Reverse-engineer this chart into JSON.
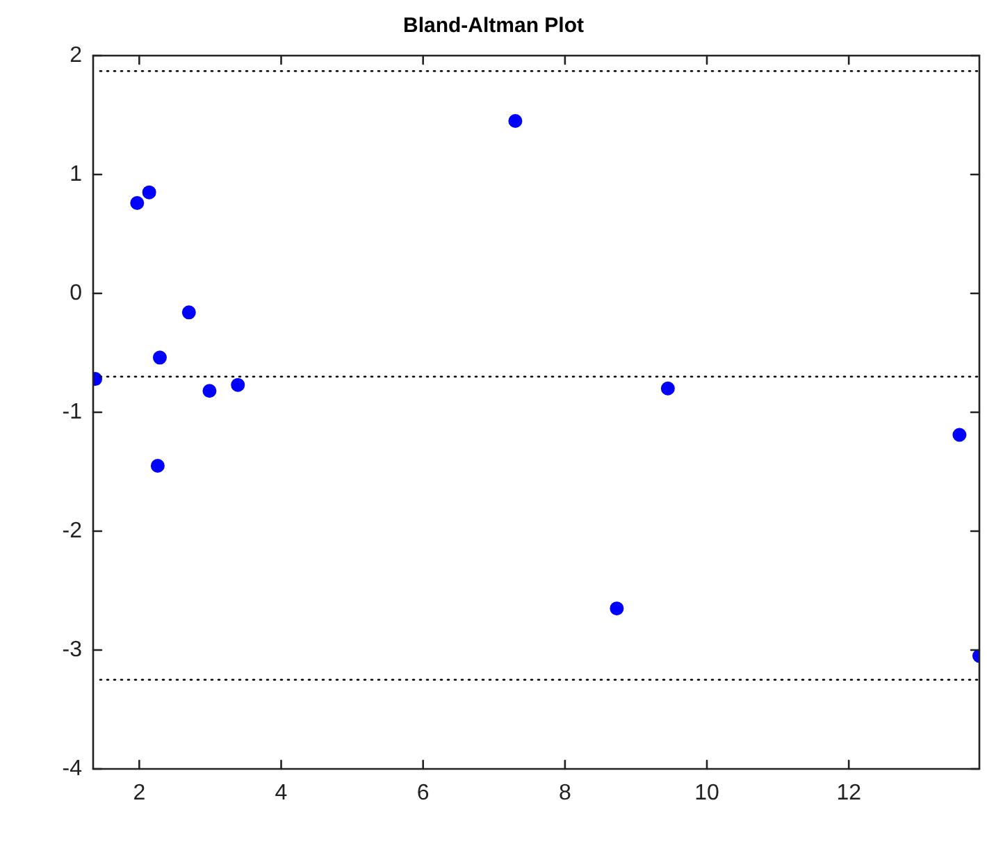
{
  "chart_data": {
    "type": "scatter",
    "title": "Bland-Altman Plot",
    "x": [
      1.38,
      1.97,
      2.14,
      2.29,
      2.26,
      2.7,
      2.99,
      3.39,
      7.3,
      9.45,
      8.73,
      13.56,
      13.84
    ],
    "series": [
      {
        "color": "#0000ff",
        "values": [
          -0.72,
          0.76,
          0.85,
          -0.54,
          -1.45,
          -0.16,
          -0.82,
          -0.77,
          1.45,
          -0.8,
          -2.65,
          -1.19,
          -3.05
        ]
      }
    ],
    "xlim": [
      1.35,
      13.84
    ],
    "xticks": [
      2,
      4,
      6,
      8,
      10,
      12
    ],
    "ylim": [
      -4,
      2
    ],
    "yticks": [
      -4,
      -3,
      -2,
      -1,
      0,
      1,
      2
    ],
    "ref_lines": [
      {
        "axis": "y",
        "value": 1.87,
        "color": "#000000",
        "line_style": "dotted"
      },
      {
        "axis": "y",
        "value": -0.7,
        "color": "#000000",
        "line_style": "dotted"
      },
      {
        "axis": "y",
        "value": -3.25,
        "color": "#000000",
        "line_style": "dotted"
      }
    ],
    "marker": "circle",
    "grid": false,
    "legend": false
  }
}
